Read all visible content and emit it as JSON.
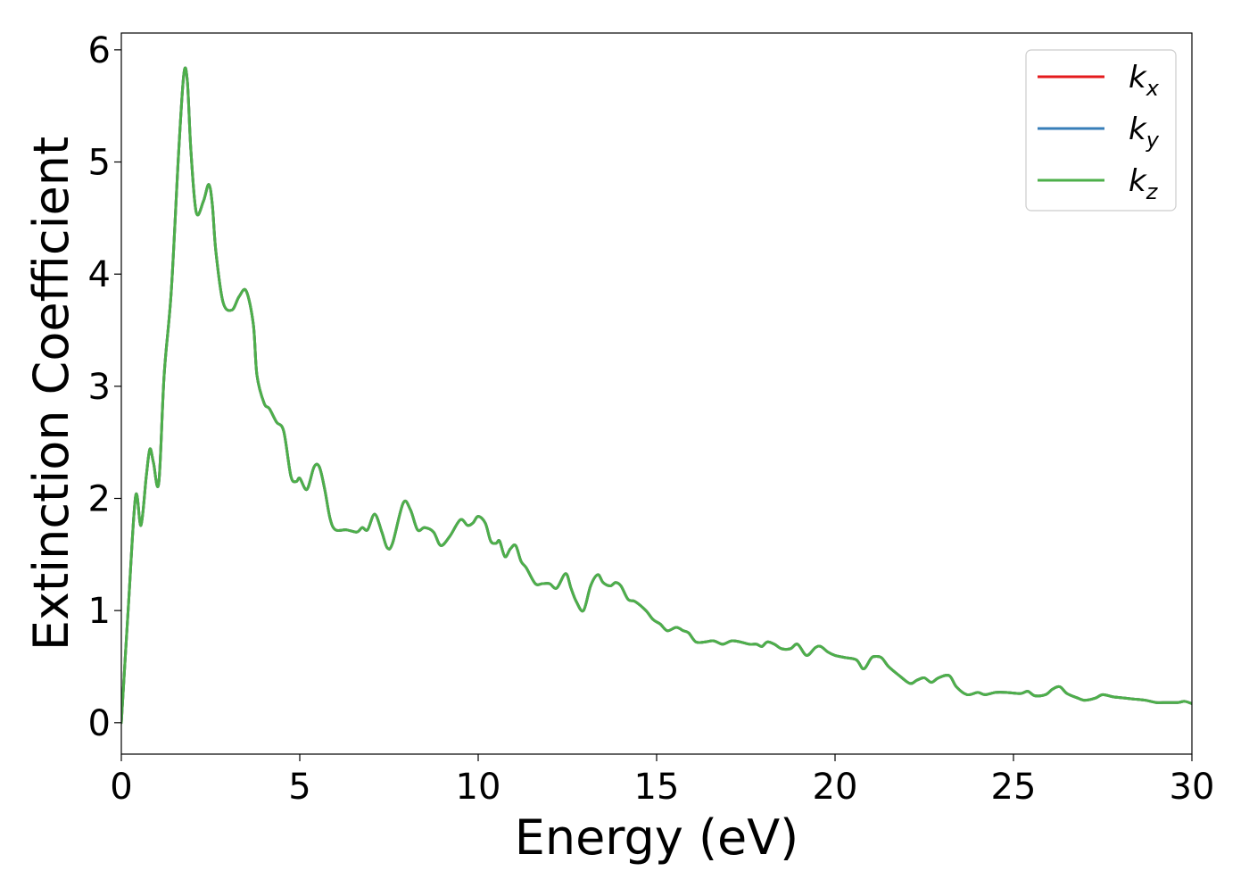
{
  "chart_data": {
    "type": "line",
    "title": "",
    "xlabel": "Energy (eV)",
    "ylabel": "Extinction Coefficient",
    "xlim": [
      0,
      30
    ],
    "ylim": [
      -0.28,
      6.15
    ],
    "xticks": [
      0,
      5,
      10,
      15,
      20,
      25,
      30
    ],
    "yticks": [
      0,
      1,
      2,
      3,
      4,
      5,
      6
    ],
    "xtick_labels": [
      "0",
      "5",
      "10",
      "15",
      "20",
      "25",
      "30"
    ],
    "ytick_labels": [
      "0",
      "1",
      "2",
      "3",
      "4",
      "5",
      "6"
    ],
    "grid": false,
    "legend": {
      "position": "top-right"
    },
    "x": [
      0,
      0.2,
      0.4,
      0.55,
      0.7,
      0.8,
      0.9,
      1.05,
      1.2,
      1.4,
      1.6,
      1.75,
      1.85,
      1.95,
      2.1,
      2.3,
      2.45,
      2.55,
      2.65,
      2.85,
      3.1,
      3.3,
      3.5,
      3.7,
      3.8,
      4.0,
      4.15,
      4.35,
      4.55,
      4.75,
      4.9,
      5.0,
      5.2,
      5.4,
      5.55,
      5.7,
      5.85,
      6.0,
      6.3,
      6.6,
      6.75,
      6.9,
      7.1,
      7.3,
      7.45,
      7.6,
      7.9,
      8.1,
      8.3,
      8.5,
      8.75,
      8.95,
      9.2,
      9.5,
      9.7,
      9.85,
      10.0,
      10.2,
      10.35,
      10.5,
      10.6,
      10.75,
      10.9,
      11.05,
      11.2,
      11.35,
      11.6,
      11.8,
      12.0,
      12.2,
      12.45,
      12.6,
      12.75,
      12.95,
      13.15,
      13.35,
      13.5,
      13.7,
      13.85,
      14.0,
      14.2,
      14.4,
      14.7,
      14.9,
      15.1,
      15.3,
      15.55,
      15.75,
      15.9,
      16.1,
      16.35,
      16.6,
      16.85,
      17.1,
      17.35,
      17.6,
      17.8,
      17.95,
      18.1,
      18.3,
      18.5,
      18.75,
      18.95,
      19.2,
      19.45,
      19.6,
      19.8,
      20.0,
      20.3,
      20.6,
      20.8,
      21.0,
      21.1,
      21.3,
      21.5,
      21.8,
      22.1,
      22.3,
      22.5,
      22.7,
      22.9,
      23.2,
      23.4,
      23.7,
      24.0,
      24.2,
      24.5,
      24.8,
      25.2,
      25.4,
      25.6,
      25.9,
      26.1,
      26.3,
      26.5,
      26.8,
      27.0,
      27.3,
      27.5,
      27.8,
      28.1,
      28.4,
      28.7,
      29.0,
      29.3,
      29.6,
      29.8,
      30.0
    ],
    "series": [
      {
        "name": "k_x",
        "color": "#e41a1c",
        "values": [
          0.0,
          1.05,
          2.02,
          1.76,
          2.2,
          2.44,
          2.32,
          2.14,
          3.1,
          3.85,
          5.05,
          5.78,
          5.72,
          5.1,
          4.55,
          4.65,
          4.8,
          4.62,
          4.2,
          3.75,
          3.68,
          3.8,
          3.85,
          3.55,
          3.1,
          2.85,
          2.8,
          2.68,
          2.6,
          2.2,
          2.15,
          2.18,
          2.08,
          2.28,
          2.28,
          2.08,
          1.82,
          1.72,
          1.72,
          1.7,
          1.74,
          1.72,
          1.86,
          1.7,
          1.56,
          1.6,
          1.96,
          1.9,
          1.72,
          1.74,
          1.7,
          1.58,
          1.66,
          1.81,
          1.76,
          1.78,
          1.84,
          1.78,
          1.62,
          1.6,
          1.62,
          1.48,
          1.55,
          1.58,
          1.44,
          1.38,
          1.24,
          1.24,
          1.24,
          1.2,
          1.33,
          1.2,
          1.08,
          1.0,
          1.22,
          1.32,
          1.25,
          1.22,
          1.25,
          1.22,
          1.1,
          1.08,
          1.0,
          0.92,
          0.88,
          0.82,
          0.85,
          0.82,
          0.8,
          0.72,
          0.72,
          0.73,
          0.7,
          0.73,
          0.72,
          0.7,
          0.7,
          0.68,
          0.72,
          0.7,
          0.66,
          0.66,
          0.7,
          0.6,
          0.67,
          0.68,
          0.63,
          0.6,
          0.58,
          0.56,
          0.48,
          0.57,
          0.59,
          0.58,
          0.5,
          0.42,
          0.35,
          0.38,
          0.4,
          0.36,
          0.4,
          0.42,
          0.32,
          0.25,
          0.27,
          0.25,
          0.27,
          0.27,
          0.26,
          0.28,
          0.24,
          0.25,
          0.3,
          0.32,
          0.26,
          0.22,
          0.2,
          0.22,
          0.25,
          0.23,
          0.22,
          0.21,
          0.2,
          0.18,
          0.18,
          0.18,
          0.19,
          0.17
        ]
      },
      {
        "name": "k_y",
        "color": "#377eb8",
        "values": [
          0.0,
          1.05,
          2.02,
          1.76,
          2.2,
          2.44,
          2.32,
          2.14,
          3.1,
          3.85,
          5.05,
          5.78,
          5.72,
          5.1,
          4.55,
          4.65,
          4.8,
          4.62,
          4.2,
          3.75,
          3.68,
          3.8,
          3.85,
          3.55,
          3.1,
          2.85,
          2.8,
          2.68,
          2.6,
          2.2,
          2.15,
          2.18,
          2.08,
          2.28,
          2.28,
          2.08,
          1.82,
          1.72,
          1.72,
          1.7,
          1.74,
          1.72,
          1.86,
          1.7,
          1.56,
          1.6,
          1.96,
          1.9,
          1.72,
          1.74,
          1.7,
          1.58,
          1.66,
          1.81,
          1.76,
          1.78,
          1.84,
          1.78,
          1.62,
          1.6,
          1.62,
          1.48,
          1.55,
          1.58,
          1.44,
          1.38,
          1.24,
          1.24,
          1.24,
          1.2,
          1.33,
          1.2,
          1.08,
          1.0,
          1.22,
          1.32,
          1.25,
          1.22,
          1.25,
          1.22,
          1.1,
          1.08,
          1.0,
          0.92,
          0.88,
          0.82,
          0.85,
          0.82,
          0.8,
          0.72,
          0.72,
          0.73,
          0.7,
          0.73,
          0.72,
          0.7,
          0.7,
          0.68,
          0.72,
          0.7,
          0.66,
          0.66,
          0.7,
          0.6,
          0.67,
          0.68,
          0.63,
          0.6,
          0.58,
          0.56,
          0.48,
          0.57,
          0.59,
          0.58,
          0.5,
          0.42,
          0.35,
          0.38,
          0.4,
          0.36,
          0.4,
          0.42,
          0.32,
          0.25,
          0.27,
          0.25,
          0.27,
          0.27,
          0.26,
          0.28,
          0.24,
          0.25,
          0.3,
          0.32,
          0.26,
          0.22,
          0.2,
          0.22,
          0.25,
          0.23,
          0.22,
          0.21,
          0.2,
          0.18,
          0.18,
          0.18,
          0.19,
          0.17
        ]
      },
      {
        "name": "k_z",
        "color": "#4daf4a",
        "values": [
          0.0,
          1.05,
          2.02,
          1.76,
          2.2,
          2.44,
          2.32,
          2.14,
          3.1,
          3.85,
          5.05,
          5.78,
          5.72,
          5.1,
          4.55,
          4.65,
          4.8,
          4.62,
          4.2,
          3.75,
          3.68,
          3.8,
          3.85,
          3.55,
          3.1,
          2.85,
          2.8,
          2.68,
          2.6,
          2.2,
          2.15,
          2.18,
          2.08,
          2.28,
          2.28,
          2.08,
          1.82,
          1.72,
          1.72,
          1.7,
          1.74,
          1.72,
          1.86,
          1.7,
          1.56,
          1.6,
          1.96,
          1.9,
          1.72,
          1.74,
          1.7,
          1.58,
          1.66,
          1.81,
          1.76,
          1.78,
          1.84,
          1.78,
          1.62,
          1.6,
          1.62,
          1.48,
          1.55,
          1.58,
          1.44,
          1.38,
          1.24,
          1.24,
          1.24,
          1.2,
          1.33,
          1.2,
          1.08,
          1.0,
          1.22,
          1.32,
          1.25,
          1.22,
          1.25,
          1.22,
          1.1,
          1.08,
          1.0,
          0.92,
          0.88,
          0.82,
          0.85,
          0.82,
          0.8,
          0.72,
          0.72,
          0.73,
          0.7,
          0.73,
          0.72,
          0.7,
          0.7,
          0.68,
          0.72,
          0.7,
          0.66,
          0.66,
          0.7,
          0.6,
          0.67,
          0.68,
          0.63,
          0.6,
          0.58,
          0.56,
          0.48,
          0.57,
          0.59,
          0.58,
          0.5,
          0.42,
          0.35,
          0.38,
          0.4,
          0.36,
          0.4,
          0.42,
          0.32,
          0.25,
          0.27,
          0.25,
          0.27,
          0.27,
          0.26,
          0.28,
          0.24,
          0.25,
          0.3,
          0.32,
          0.26,
          0.22,
          0.2,
          0.22,
          0.25,
          0.23,
          0.22,
          0.21,
          0.2,
          0.18,
          0.18,
          0.18,
          0.19,
          0.17
        ]
      }
    ],
    "legend_entries": [
      {
        "base": "k",
        "sub": "x",
        "color": "#e41a1c"
      },
      {
        "base": "k",
        "sub": "y",
        "color": "#377eb8"
      },
      {
        "base": "k",
        "sub": "z",
        "color": "#4daf4a"
      }
    ]
  }
}
